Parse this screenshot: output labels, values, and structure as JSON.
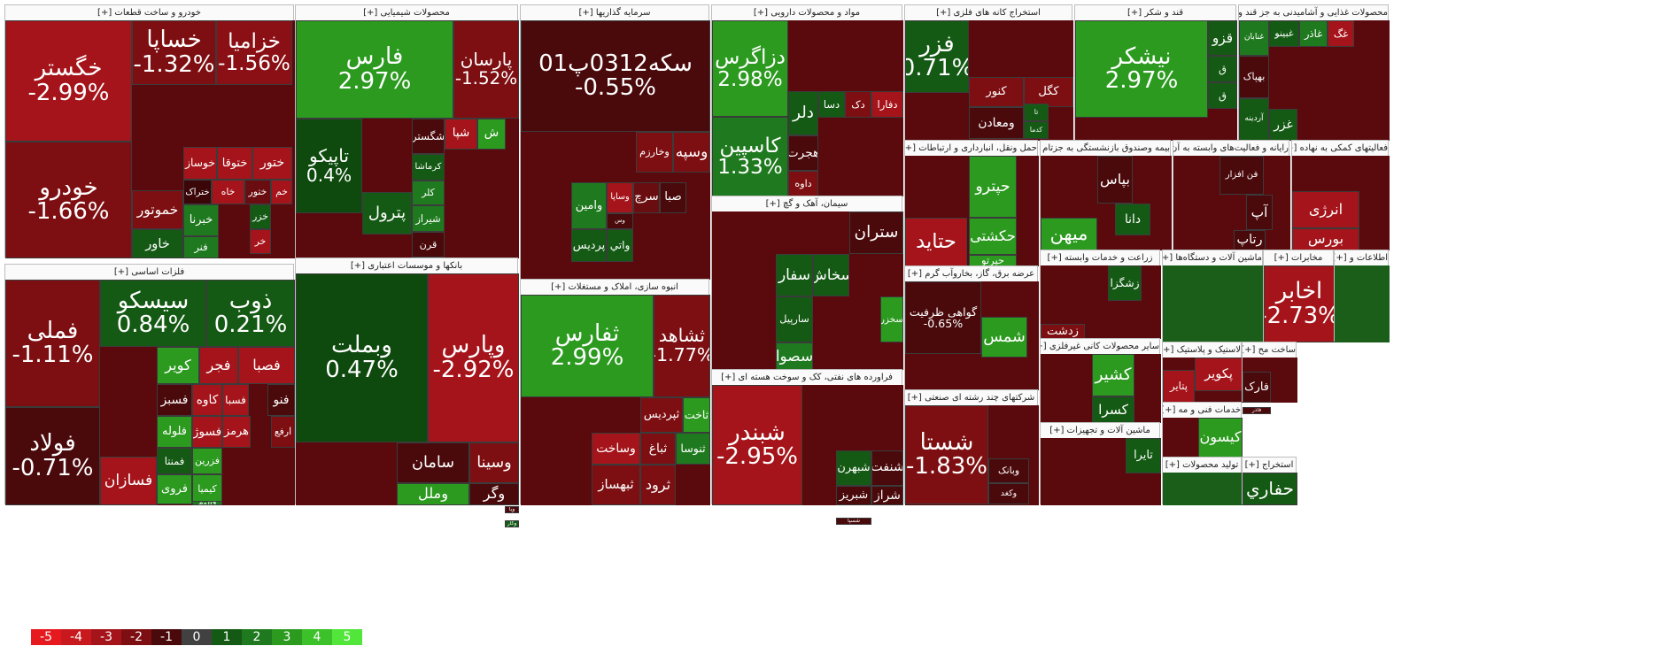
{
  "legend": [
    {
      "label": "-5",
      "color": "#e6191f"
    },
    {
      "label": "-4",
      "color": "#c81a1e"
    },
    {
      "label": "-3",
      "color": "#a5141a"
    },
    {
      "label": "-2",
      "color": "#7d0f12"
    },
    {
      "label": "-1",
      "color": "#4a0a0c"
    },
    {
      "label": "0",
      "color": "#414141"
    },
    {
      "label": "1",
      "color": "#145a14"
    },
    {
      "label": "2",
      "color": "#1f7a1f"
    },
    {
      "label": "3",
      "color": "#2b9a1f"
    },
    {
      "label": "4",
      "color": "#3cc12a"
    },
    {
      "label": "5",
      "color": "#52e63a"
    }
  ],
  "sectors": [
    {
      "title": "خودرو و ساخت قطعات [+]",
      "tiles": [
        {
          "name": "خگستر",
          "pct": "-2.99%",
          "color": "#a5141a"
        },
        {
          "name": "خودرو",
          "pct": "-1.66%",
          "color": "#7d0f12"
        },
        {
          "name": "خساپا",
          "pct": "-1.32%",
          "color": "#7d0f12"
        },
        {
          "name": "خزامیا",
          "pct": "-1.56%",
          "color": "#8a1015"
        },
        {
          "name": "خموتور",
          "pct": "",
          "color": "#7d0f12"
        },
        {
          "name": "خاور",
          "pct": "",
          "color": "#145a14"
        },
        {
          "name": "خوساز",
          "pct": "",
          "color": "#a5141a"
        },
        {
          "name": "ختوقا",
          "pct": "",
          "color": "#a5141a"
        },
        {
          "name": "ختور",
          "pct": "",
          "color": "#a5141a"
        },
        {
          "name": "ختراک",
          "pct": "",
          "color": "#3a0608"
        },
        {
          "name": "خاه",
          "pct": "",
          "color": "#a5141a"
        },
        {
          "name": "ختور",
          "pct": "",
          "color": "#6a0d10"
        },
        {
          "name": "خم",
          "pct": "",
          "color": "#a5141a"
        },
        {
          "name": "خبرنا",
          "pct": "",
          "color": "#1f7a1f"
        },
        {
          "name": "خزر",
          "pct": "",
          "color": "#145a14"
        },
        {
          "name": "فنر",
          "pct": "",
          "color": "#1f7a1f"
        },
        {
          "name": "خر",
          "pct": "",
          "color": "#a5141a"
        }
      ]
    },
    {
      "title": "محصولات شیمیایی [+]",
      "tiles": [
        {
          "name": "فارس",
          "pct": "2.97%",
          "color": "#2b9a1f"
        },
        {
          "name": "پارسان",
          "pct": "-1.52%",
          "color": "#7d0f12"
        },
        {
          "name": "تاپیکو",
          "pct": "0.4%",
          "color": "#0e4a0e"
        },
        {
          "name": "پترول",
          "pct": "",
          "color": "#145a14"
        },
        {
          "name": "شگستر",
          "pct": "",
          "color": "#4a0a0c"
        },
        {
          "name": "شپا",
          "pct": "",
          "color": "#a5141a"
        },
        {
          "name": "ش",
          "pct": "",
          "color": "#2b9a1f"
        },
        {
          "name": "کرماشا",
          "pct": "",
          "color": "#145a14"
        },
        {
          "name": "کلر",
          "pct": "",
          "color": "#1f7a1f"
        },
        {
          "name": "شیراز",
          "pct": "",
          "color": "#1f7a1f"
        },
        {
          "name": "قرن",
          "pct": "",
          "color": "#4a0a0c"
        }
      ]
    },
    {
      "title": "سرمایه گذاریها [+]",
      "tiles": [
        {
          "name": "سکه0312پ01",
          "pct": "-0.55%",
          "color": "#4a0a0c"
        },
        {
          "name": "وخارزم",
          "pct": "",
          "color": "#7d0f12"
        },
        {
          "name": "وسپه",
          "pct": "",
          "color": "#7d0f12"
        },
        {
          "name": "وامین",
          "pct": "",
          "color": "#1f7a1f"
        },
        {
          "name": "وساپا",
          "pct": "",
          "color": "#a5141a"
        },
        {
          "name": "صبا",
          "pct": "",
          "color": "#4a0a0c"
        },
        {
          "name": "سرچ",
          "pct": "",
          "color": "#6a0d10"
        },
        {
          "name": "پردیس",
          "pct": "",
          "color": "#145a14"
        },
        {
          "name": "واتي",
          "pct": "",
          "color": "#145a14"
        },
        {
          "name": "وس",
          "pct": "",
          "color": "#4a0a0c"
        }
      ]
    },
    {
      "title": "مواد و محصولات دارویی [+]",
      "tiles": [
        {
          "name": "دزاگرس",
          "pct": "2.98%",
          "color": "#2b9a1f"
        },
        {
          "name": "کاسپین",
          "pct": "1.33%",
          "color": "#1f7a1f"
        },
        {
          "name": "دلر",
          "pct": "",
          "color": "#145a14"
        },
        {
          "name": "هجرت",
          "pct": "",
          "color": "#4a0a0c"
        },
        {
          "name": "داوه",
          "pct": "",
          "color": "#7d0f12"
        },
        {
          "name": "دسا",
          "pct": "",
          "color": "#145a14"
        },
        {
          "name": "دک",
          "pct": "",
          "color": "#7d0f12"
        },
        {
          "name": "دفارا",
          "pct": "",
          "color": "#a5141a"
        }
      ]
    },
    {
      "title": "استخراج کانه های فلزی [+]",
      "tiles": [
        {
          "name": "فزر",
          "pct": "0.71%",
          "color": "#145a14"
        },
        {
          "name": "کنور",
          "pct": "",
          "color": "#7d0f12"
        },
        {
          "name": "کگل",
          "pct": "",
          "color": "#7d0f12"
        },
        {
          "name": "ومعادن",
          "pct": "",
          "color": "#4a0a0c"
        },
        {
          "name": "کدما",
          "pct": "",
          "color": "#145a14"
        },
        {
          "name": "تا",
          "pct": "",
          "color": "#145a14"
        }
      ]
    },
    {
      "title": "قند و شکر [+]",
      "tiles": [
        {
          "name": "نیشکر",
          "pct": "2.97%",
          "color": "#2b9a1f"
        },
        {
          "name": "قزو",
          "pct": "",
          "color": "#145a14"
        },
        {
          "name": "ق",
          "pct": "",
          "color": "#145a14"
        },
        {
          "name": "ق",
          "pct": "",
          "color": "#145a14"
        }
      ]
    },
    {
      "title": "محصولات غذایی و آشامیدنی به جز قند و [+]",
      "tiles": [
        {
          "name": "غنابان",
          "pct": "",
          "color": "#1f7a1f"
        },
        {
          "name": "غبینو",
          "pct": "",
          "color": "#145a14"
        },
        {
          "name": "غاذر",
          "pct": "",
          "color": "#1f7a1f"
        },
        {
          "name": "بهپاک",
          "pct": "",
          "color": "#4a0a0c"
        },
        {
          "name": "آردینه",
          "pct": "",
          "color": "#145a14"
        },
        {
          "name": "غزر",
          "pct": "",
          "color": "#145a14"
        },
        {
          "name": "غگ",
          "pct": "",
          "color": "#a5141a"
        }
      ]
    },
    {
      "title": "فلزات اساسی [+]",
      "tiles": [
        {
          "name": "فملی",
          "pct": "-1.11%",
          "color": "#7d0f12"
        },
        {
          "name": "فولاد",
          "pct": "-0.71%",
          "color": "#4a0a0c"
        },
        {
          "name": "سیسکو",
          "pct": "0.84%",
          "color": "#145a14"
        },
        {
          "name": "ذوب",
          "pct": "0.21%",
          "color": "#145a14"
        },
        {
          "name": "کویر",
          "pct": "",
          "color": "#2b9a1f"
        },
        {
          "name": "فجر",
          "pct": "",
          "color": "#a5141a"
        },
        {
          "name": "فصبا",
          "pct": "",
          "color": "#a5141a"
        },
        {
          "name": "فسبز",
          "pct": "",
          "color": "#4a0a0c"
        },
        {
          "name": "کاوه",
          "pct": "",
          "color": "#a5141a"
        },
        {
          "name": "فسبا",
          "pct": "",
          "color": "#a5141a"
        },
        {
          "name": "فنو",
          "pct": "",
          "color": "#4a0a0c"
        },
        {
          "name": "فلوله",
          "pct": "",
          "color": "#2b9a1f"
        },
        {
          "name": "فسوژ",
          "pct": "",
          "color": "#a5141a"
        },
        {
          "name": "هرمز",
          "pct": "",
          "color": "#a5141a"
        },
        {
          "name": "ارفع",
          "pct": "",
          "color": "#7d0f12"
        },
        {
          "name": "فمنتا",
          "pct": "",
          "color": "#145a14"
        },
        {
          "name": "فزرین",
          "pct": "",
          "color": "#2b9a1f"
        },
        {
          "name": "فروی",
          "pct": "",
          "color": "#2b9a1f"
        },
        {
          "name": "کیمیا",
          "pct": "",
          "color": "#2b9a1f"
        },
        {
          "name": "فالوم",
          "pct": "",
          "color": "#1f7a1f"
        },
        {
          "name": "فسازان",
          "pct": "",
          "color": "#a5141a"
        }
      ]
    },
    {
      "title": "بانکها و موسسات اعتباری [+]",
      "tiles": [
        {
          "name": "وبملت",
          "pct": "0.47%",
          "color": "#0e4a0e"
        },
        {
          "name": "وپارس",
          "pct": "-2.92%",
          "color": "#a5141a"
        },
        {
          "name": "سامان",
          "pct": "",
          "color": "#4a0a0c"
        },
        {
          "name": "وسینا",
          "pct": "",
          "color": "#7d0f12"
        },
        {
          "name": "وملل",
          "pct": "",
          "color": "#2b9a1f"
        },
        {
          "name": "وگر",
          "pct": "",
          "color": "#4a0a0c"
        },
        {
          "name": "ویا",
          "pct": "",
          "color": "#4a0a0c"
        },
        {
          "name": "وکار",
          "pct": "",
          "color": "#145a14"
        }
      ]
    },
    {
      "title": "انبوه سازی، املاک و مستغلات [+]",
      "tiles": [
        {
          "name": "ثفارس",
          "pct": "2.99%",
          "color": "#2b9a1f"
        },
        {
          "name": "ثشاهد",
          "pct": "-1.77%",
          "color": "#7d0f12"
        },
        {
          "name": "ثپردیس",
          "pct": "",
          "color": "#7d0f12"
        },
        {
          "name": "ثاخت",
          "pct": "",
          "color": "#2b9a1f"
        },
        {
          "name": "وساخت",
          "pct": "",
          "color": "#a5141a"
        },
        {
          "name": "ثباغ",
          "pct": "",
          "color": "#7d0f12"
        },
        {
          "name": "ثنوسا",
          "pct": "",
          "color": "#1f7a1f"
        },
        {
          "name": "ثبهساز",
          "pct": "",
          "color": "#7d0f12"
        },
        {
          "name": "ثرود",
          "pct": "",
          "color": "#7d0f12"
        }
      ]
    },
    {
      "title": "سیمان، آهک و گچ [+]",
      "tiles": [
        {
          "name": "ستران",
          "pct": "",
          "color": "#4a0a0c"
        },
        {
          "name": "سخاش",
          "pct": "",
          "color": "#145a14"
        },
        {
          "name": "سفار",
          "pct": "",
          "color": "#145a14"
        },
        {
          "name": "سارپیل",
          "pct": "",
          "color": "#145a14"
        },
        {
          "name": "سصوا",
          "pct": "",
          "color": "#1f7a1f"
        },
        {
          "name": "سخزر",
          "pct": "",
          "color": "#2b9a1f"
        }
      ]
    },
    {
      "title": "فراورده های نفتی، کک و سوخت هسته ای [+]",
      "tiles": [
        {
          "name": "شبندر",
          "pct": "-2.95%",
          "color": "#a5141a"
        },
        {
          "name": "شبهرن",
          "pct": "",
          "color": "#145a14"
        },
        {
          "name": "شنفت",
          "pct": "",
          "color": "#4a0a0c"
        },
        {
          "name": "شبریز",
          "pct": "",
          "color": "#4a0a0c"
        },
        {
          "name": "شراز",
          "pct": "",
          "color": "#4a0a0c"
        },
        {
          "name": "شسپا",
          "pct": "",
          "color": "#4a0a0c"
        }
      ]
    },
    {
      "title": "حمل ونقل، انبارداری و ارتباطات [+]",
      "tiles": [
        {
          "name": "حتاید",
          "pct": "",
          "color": "#a5141a"
        },
        {
          "name": "حپترو",
          "pct": "",
          "color": "#2b9a1f"
        },
        {
          "name": "حکشتی",
          "pct": "",
          "color": "#2b9a1f"
        },
        {
          "name": "حپرتو",
          "pct": "",
          "color": "#2b9a1f"
        }
      ]
    },
    {
      "title": "عرضه برق، گاز، بخاروآب گرم [+]",
      "tiles": [
        {
          "name": "گواهی ظرفیت",
          "pct": "-0.65%",
          "color": "#4a0a0c"
        },
        {
          "name": "شمس",
          "pct": "",
          "color": "#2b9a1f"
        }
      ]
    },
    {
      "title": "شرکتهای چند رشته ای صنعتی [+]",
      "tiles": [
        {
          "name": "شستا",
          "pct": "-1.83%",
          "color": "#7d0f12"
        },
        {
          "name": "وبانک",
          "pct": "",
          "color": "#4a0a0c"
        },
        {
          "name": "وکغد",
          "pct": "",
          "color": "#4a0a0c"
        }
      ]
    },
    {
      "title": "بیمه وصندوق بازنشستگی به جزتام [+]",
      "tiles": [
        {
          "name": "میهن",
          "pct": "",
          "color": "#2b9a1f"
        },
        {
          "name": "بپاس",
          "pct": "",
          "color": "#4a0a0c"
        },
        {
          "name": "دانا",
          "pct": "",
          "color": "#145a14"
        }
      ]
    },
    {
      "title": "رایانه و فعالیت‌های وابسته به آن [+]",
      "tiles": [
        {
          "name": "فن افزار",
          "pct": "",
          "color": "#4a0a0c"
        },
        {
          "name": "آپ",
          "pct": "",
          "color": "#4a0a0c"
        },
        {
          "name": "رتاپ",
          "pct": "",
          "color": "#4a0a0c"
        }
      ]
    },
    {
      "title": "فعالیتهای کمکی به نهاده [+]",
      "tiles": [
        {
          "name": "انرژی",
          "pct": "",
          "color": "#a5141a"
        },
        {
          "name": "بورس",
          "pct": "",
          "color": "#a5141a"
        }
      ]
    },
    {
      "title": "زراعت و خدمات وابسته [+]",
      "tiles": [
        {
          "name": "زشگزا",
          "pct": "",
          "color": "#145a14"
        },
        {
          "name": "زدشت",
          "pct": "",
          "color": "#7d0f12"
        }
      ]
    },
    {
      "title": "ماشین آلات و دستگاه‌ها [+]",
      "tiles": []
    },
    {
      "title": "مخابرات [+]",
      "tiles": [
        {
          "name": "اخابر",
          "pct": "-2.73%",
          "color": "#a5141a"
        }
      ]
    },
    {
      "title": "اطلاعات و [+]",
      "tiles": []
    },
    {
      "title": "سایر محصولات کانی غیرفلزی [+]",
      "tiles": [
        {
          "name": "کشیر",
          "pct": "",
          "color": "#2b9a1f"
        },
        {
          "name": "کسرا",
          "pct": "",
          "color": "#145a14"
        }
      ]
    },
    {
      "title": "لاستیک و پلاستیک [+]",
      "tiles": [
        {
          "name": "پکویر",
          "pct": "",
          "color": "#a5141a"
        },
        {
          "name": "پتایر",
          "pct": "",
          "color": "#a5141a"
        }
      ]
    },
    {
      "title": "ساخت مح [+]",
      "tiles": [
        {
          "name": "فارک",
          "pct": "",
          "color": "#4a0a0c"
        },
        {
          "name": "فاذر",
          "pct": "",
          "color": "#4a0a0c"
        }
      ]
    },
    {
      "title": "خدمات فنی و مه [+]",
      "tiles": [
        {
          "name": "کیسون",
          "pct": "",
          "color": "#2b9a1f"
        }
      ]
    },
    {
      "title": "ماشین آلات و تجهیزات [+]",
      "tiles": [
        {
          "name": "تایرا",
          "pct": "",
          "color": "#145a14"
        }
      ]
    },
    {
      "title": "تولید محصولات [+]",
      "tiles": []
    },
    {
      "title": "استخراج [+]",
      "tiles": [
        {
          "name": "حفاري",
          "pct": "",
          "color": "#145a14"
        }
      ]
    }
  ]
}
